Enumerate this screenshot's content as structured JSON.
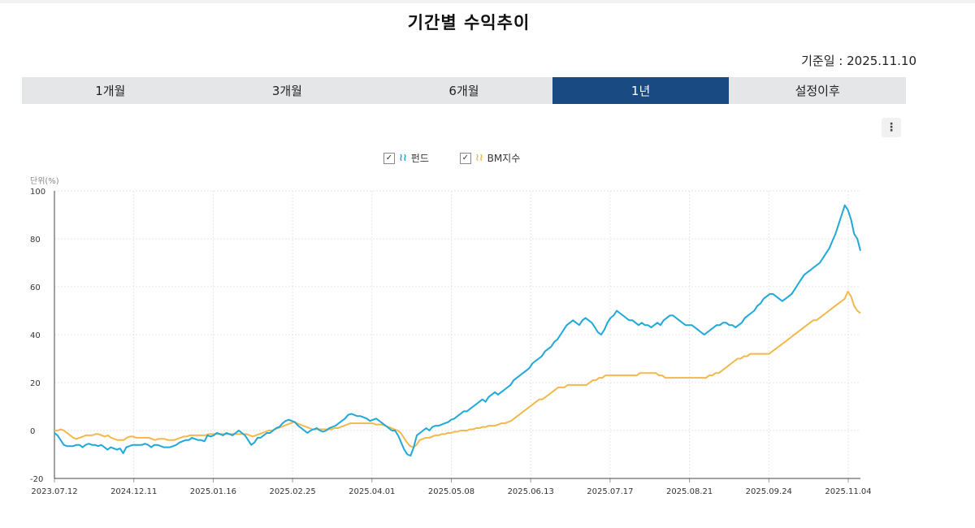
{
  "title": "기간별 수익추이",
  "base_date": "기준일 : 2025.11.10",
  "tabs": [
    "1개월",
    "3개월",
    "6개월",
    "1년",
    "설정이후"
  ],
  "active_tab": 3,
  "menu_icon": "⋮",
  "legend": {
    "fund": "펀드",
    "bm": "BM지수",
    "check": "✓",
    "swatch_icon": "≀≀"
  },
  "colors": {
    "fund": "#1fa8d8",
    "bm": "#f2b84b",
    "active_tab": "#1a4a82"
  },
  "chart_data": {
    "type": "line",
    "unit_label": "단위(%)",
    "ylim": [
      -20,
      100
    ],
    "yticks": [
      -20,
      0,
      20,
      40,
      60,
      80,
      100
    ],
    "xtick_labels": [
      "2023.07.12",
      "2024.12.11",
      "2025.01.16",
      "2025.02.25",
      "2025.04.01",
      "2025.05.08",
      "2025.06.13",
      "2025.07.17",
      "2025.08.21",
      "2025.09.24",
      "2025.11.04"
    ],
    "grid": true,
    "series": [
      {
        "name": "펀드",
        "values": [
          -1,
          -2,
          -4,
          -6,
          -6.5,
          -6.5,
          -6.5,
          -6,
          -6,
          -7,
          -6,
          -5.5,
          -6,
          -6,
          -6.5,
          -6,
          -7,
          -8,
          -7,
          -7.5,
          -8,
          -7.5,
          -9.5,
          -7,
          -6.5,
          -6,
          -6,
          -6,
          -6,
          -5.5,
          -6,
          -7,
          -6,
          -6,
          -6.5,
          -7,
          -7,
          -7,
          -6.5,
          -6,
          -5,
          -4.5,
          -4,
          -4,
          -3,
          -3.5,
          -4,
          -4,
          -4.5,
          -2,
          -2.5,
          -2,
          -1,
          -1.5,
          -2,
          -1,
          -1.5,
          -2,
          -1,
          0,
          -1,
          -2,
          -4,
          -6,
          -5,
          -3,
          -3,
          -2,
          -1,
          -1,
          0,
          1,
          1.5,
          3,
          4,
          4.5,
          4,
          3.5,
          2,
          1,
          0,
          -1,
          0,
          0.5,
          1,
          0,
          -0.5,
          0,
          1,
          1.5,
          2,
          3,
          4,
          5,
          6.5,
          7,
          6.5,
          6,
          6,
          5.5,
          5,
          4,
          4.5,
          5,
          4,
          3,
          2,
          1,
          0,
          0,
          -2,
          -5,
          -8,
          -10,
          -10.5,
          -7,
          -2,
          -1,
          0,
          1,
          0,
          1.5,
          2,
          2,
          2.5,
          3,
          3.5,
          4.5,
          5,
          6,
          7,
          8,
          8,
          9,
          10,
          11,
          12,
          13,
          12,
          14,
          15,
          16,
          15,
          16,
          17,
          18,
          19,
          21,
          22,
          23,
          24,
          25,
          26,
          28,
          29,
          30,
          31,
          33,
          34,
          35,
          37,
          38,
          40,
          42,
          44,
          45,
          46,
          45,
          44,
          46,
          47,
          46,
          45,
          43,
          41,
          40,
          42,
          45,
          47,
          48,
          50,
          49,
          48,
          47,
          46,
          46,
          45,
          44,
          45,
          44,
          44,
          43,
          44,
          45,
          44,
          46,
          47,
          48,
          48,
          47,
          46,
          45,
          44,
          44,
          44,
          43,
          42,
          41,
          40,
          41,
          42,
          43,
          44,
          44,
          45,
          45,
          44,
          44,
          43,
          44,
          45,
          47,
          48,
          49,
          50,
          52,
          53,
          55,
          56,
          57,
          57,
          56,
          55,
          54,
          55,
          56,
          57,
          59,
          61,
          63,
          65,
          66,
          67,
          68,
          69,
          70,
          72,
          74,
          76,
          79,
          82,
          86,
          90,
          94,
          92,
          88,
          82,
          80,
          75
        ]
      },
      {
        "name": "BM지수",
        "values": [
          0,
          0,
          0.5,
          0,
          -1,
          -2,
          -3,
          -3.5,
          -3,
          -2.5,
          -2,
          -2,
          -2,
          -1.5,
          -1.5,
          -2,
          -2.5,
          -2,
          -3,
          -3.5,
          -4,
          -4,
          -4,
          -3,
          -2.5,
          -2.5,
          -3,
          -3,
          -3,
          -3,
          -3,
          -3.5,
          -4,
          -3.5,
          -3.5,
          -3.5,
          -4,
          -4,
          -4,
          -3.5,
          -3,
          -2.5,
          -2.5,
          -2,
          -2,
          -2,
          -2,
          -2,
          -2,
          -1.5,
          -1.5,
          -1.5,
          -1.5,
          -1.5,
          -1.5,
          -1.5,
          -1.5,
          -1.5,
          -1.5,
          -1.5,
          -1.5,
          -1.5,
          -2,
          -2.5,
          -2,
          -1.5,
          -1,
          -0.5,
          0,
          0,
          0.5,
          1,
          1.5,
          2,
          2.5,
          3,
          3.5,
          3,
          2.5,
          2,
          1.5,
          1,
          0.5,
          0.5,
          0.5,
          0.5,
          0.5,
          0.5,
          0.5,
          1,
          1,
          1.5,
          2,
          2.5,
          3,
          3,
          3,
          3,
          3,
          3,
          3,
          3,
          2.5,
          2.5,
          2.5,
          2,
          1.5,
          1,
          0.5,
          0,
          -1,
          -3,
          -5,
          -6.5,
          -7,
          -6,
          -4,
          -3.5,
          -3,
          -3,
          -2.5,
          -2,
          -2,
          -1.5,
          -1.5,
          -1,
          -1,
          -0.5,
          -0.5,
          0,
          0,
          0,
          0.5,
          0.5,
          1,
          1,
          1.5,
          1.5,
          2,
          2,
          2,
          2.5,
          3,
          3,
          3.5,
          4,
          5,
          6,
          7,
          8,
          9,
          10,
          11,
          12,
          13,
          13,
          14,
          15,
          16,
          17,
          18,
          18,
          18,
          19,
          19,
          19,
          19,
          19,
          19,
          19,
          20,
          21,
          21,
          22,
          22,
          23,
          23,
          23,
          23,
          23,
          23,
          23,
          23,
          23,
          23,
          23,
          24,
          24,
          24,
          24,
          24,
          24,
          23,
          23,
          22,
          22,
          22,
          22,
          22,
          22,
          22,
          22,
          22,
          22,
          22,
          22,
          22,
          22,
          23,
          23,
          24,
          24,
          25,
          26,
          27,
          28,
          29,
          30,
          30,
          31,
          31,
          32,
          32,
          32,
          32,
          32,
          32,
          32,
          33,
          34,
          35,
          36,
          37,
          38,
          39,
          40,
          41,
          42,
          43,
          44,
          45,
          46,
          46,
          47,
          48,
          49,
          50,
          51,
          52,
          53,
          54,
          55,
          58,
          56,
          52,
          50,
          49
        ]
      }
    ]
  }
}
